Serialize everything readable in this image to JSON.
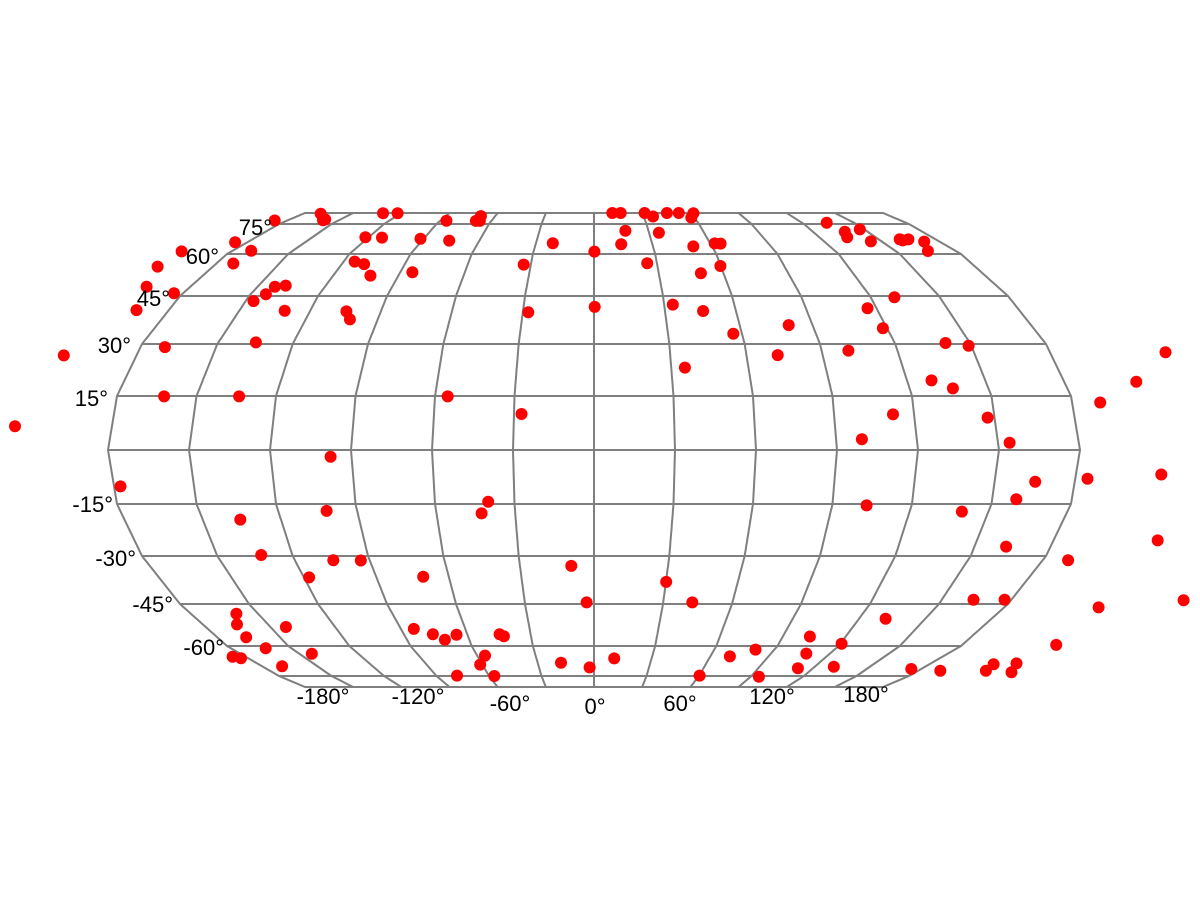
{
  "chart_data": {
    "type": "scatter",
    "projection": "pseudocylindrical world map (oval), central meridian 0°",
    "title": "",
    "xlabel": "",
    "ylabel": "",
    "grid": true,
    "graticule_color": "#7f7f7f",
    "marker_color": "#ff0000",
    "lat_ticks": [
      {
        "value": 75,
        "label": "75°"
      },
      {
        "value": 60,
        "label": "60°"
      },
      {
        "value": 45,
        "label": "45°"
      },
      {
        "value": 30,
        "label": "30°"
      },
      {
        "value": 15,
        "label": "15°"
      },
      {
        "value": -15,
        "label": "-15°"
      },
      {
        "value": -30,
        "label": "-30°"
      },
      {
        "value": -45,
        "label": "-45°"
      },
      {
        "value": -60,
        "label": "-60°"
      }
    ],
    "lon_ticks": [
      {
        "value": -180,
        "label": "-180°"
      },
      {
        "value": -120,
        "label": "-120°"
      },
      {
        "value": -60,
        "label": "-60°"
      },
      {
        "value": 0,
        "label": "0°"
      },
      {
        "value": 60,
        "label": "60°"
      },
      {
        "value": 120,
        "label": "120°"
      },
      {
        "value": 180,
        "label": "180°"
      }
    ],
    "points": [
      {
        "lon": -169.3,
        "lat": 79.7
      },
      {
        "lon": -131.2,
        "lat": 79.9
      },
      {
        "lon": -122.1,
        "lat": 79.9
      },
      {
        "lon": -68.7,
        "lat": 78.6
      },
      {
        "lon": 11.4,
        "lat": 80.2
      },
      {
        "lon": 16.6,
        "lat": 80.3
      },
      {
        "lon": 31.5,
        "lat": 80.0
      },
      {
        "lon": 45.4,
        "lat": 80.2
      },
      {
        "lon": 52.8,
        "lat": 80.2
      },
      {
        "lon": 61.8,
        "lat": 79.9
      },
      {
        "lon": -187.4,
        "lat": 76.6
      },
      {
        "lon": -159.1,
        "lat": 77.1
      },
      {
        "lon": -159.3,
        "lat": 76.7
      },
      {
        "lon": -86.5,
        "lat": 76.5
      },
      {
        "lon": -69.1,
        "lat": 76.4
      },
      {
        "lon": -66.8,
        "lat": 76.4
      },
      {
        "lon": 35.7,
        "lat": 78.4
      },
      {
        "lon": 58.4,
        "lat": 77.9
      },
      {
        "lon": 134.3,
        "lat": 75.6
      },
      {
        "lon": 17.3,
        "lat": 71.6
      },
      {
        "lon": 35.4,
        "lat": 70.6
      },
      {
        "lon": 137.4,
        "lat": 71.1
      },
      {
        "lon": 147.5,
        "lat": 72.3
      },
      {
        "lon": -121.8,
        "lat": 68.4
      },
      {
        "lon": -112.7,
        "lat": 68.2
      },
      {
        "lon": -91.7,
        "lat": 67.6
      },
      {
        "lon": -75.8,
        "lat": 66.7
      },
      {
        "lon": -21.3,
        "lat": 65.4
      },
      {
        "lon": 14.0,
        "lat": 64.9
      },
      {
        "lon": 50.5,
        "lat": 63.8
      },
      {
        "lon": 62.3,
        "lat": 65.3
      },
      {
        "lon": 65.3,
        "lat": 65.2
      },
      {
        "lon": 134.9,
        "lat": 68.4
      },
      {
        "lon": 144.4,
        "lat": 66.3
      },
      {
        "lon": 161.2,
        "lat": 67.4
      },
      {
        "lon": 161.8,
        "lat": 66.8
      },
      {
        "lon": 165.6,
        "lat": 67.3
      },
      {
        "lon": 172.0,
        "lat": 66.2
      },
      {
        "lon": -186.4,
        "lat": 65.9
      },
      {
        "lon": -204.8,
        "lat": 61.3
      },
      {
        "lon": -170.7,
        "lat": 61.6
      },
      {
        "lon": 0.2,
        "lat": 61.2
      },
      {
        "lon": 166.1,
        "lat": 61.5
      },
      {
        "lon": -114.7,
        "lat": 57.3
      },
      {
        "lon": -109.4,
        "lat": 56.4
      },
      {
        "lon": -102.9,
        "lat": 52.3
      },
      {
        "lon": -84.4,
        "lat": 53.5
      },
      {
        "lon": -33.4,
        "lat": 56.2
      },
      {
        "lon": 25.4,
        "lat": 56.7
      },
      {
        "lon": 49.5,
        "lat": 53.1
      },
      {
        "lon": 59.8,
        "lat": 55.7
      },
      {
        "lon": -206.1,
        "lat": 55.5
      },
      {
        "lon": -171.9,
        "lat": 56.6
      },
      {
        "lon": -199.5,
        "lat": 48.3
      },
      {
        "lon": -146.6,
        "lat": 43.4
      },
      {
        "lon": -137.9,
        "lat": 48.7
      },
      {
        "lon": -142.3,
        "lat": 48.3
      },
      {
        "lon": -101.6,
        "lat": 37.7
      },
      {
        "lon": -27.7,
        "lat": 39.9
      },
      {
        "lon": 33.7,
        "lat": 42.3
      },
      {
        "lon": 130.3,
        "lat": 44.6
      },
      {
        "lon": -193.7,
        "lat": 40.6
      },
      {
        "lon": -184.0,
        "lat": 46.0
      },
      {
        "lon": -143.3,
        "lat": 45.6
      },
      {
        "lon": -130.8,
        "lat": 40.4
      },
      {
        "lon": -104.6,
        "lat": 40.2
      },
      {
        "lon": 116.2,
        "lat": 41.2
      },
      {
        "lon": 0.3,
        "lat": 41.6
      },
      {
        "lon": 46.1,
        "lat": 40.3
      },
      {
        "lon": -135.0,
        "lat": 30.5
      },
      {
        "lon": 56.5,
        "lat": 33.2
      },
      {
        "lon": 140.2,
        "lat": 30.3
      },
      {
        "lon": 118.3,
        "lat": 34.9
      },
      {
        "lon": -170.3,
        "lat": 29.1
      },
      {
        "lon": 72.3,
        "lat": 26.8
      },
      {
        "lon": 100.6,
        "lat": 28.1
      },
      {
        "lon": 80.2,
        "lat": 35.9
      },
      {
        "lon": 148.9,
        "lat": 29.5
      },
      {
        "lon": -208.6,
        "lat": 26.7
      },
      {
        "lon": 225.6,
        "lat": 27.6
      },
      {
        "lon": -162.2,
        "lat": 14.9
      },
      {
        "lon": -133.9,
        "lat": 14.9
      },
      {
        "lon": -55.2,
        "lat": 14.9
      },
      {
        "lon": 35.3,
        "lat": 23.2
      },
      {
        "lon": 129.4,
        "lat": 19.5
      },
      {
        "lon": 136.5,
        "lat": 17.2
      },
      {
        "lon": 207.6,
        "lat": 19.1
      },
      {
        "lon": 246.8,
        "lat": 18.5
      },
      {
        "lon": 248.8,
        "lat": 17.9
      },
      {
        "lon": 190.6,
        "lat": 13.2
      },
      {
        "lon": -27.2,
        "lat": 10.0
      },
      {
        "lon": 112.1,
        "lat": 9.9
      },
      {
        "lon": 147.4,
        "lat": 9.0
      },
      {
        "lon": -216.2,
        "lat": 6.6
      },
      {
        "lon": 99.6,
        "lat": 3.0
      },
      {
        "lon": 154.3,
        "lat": 2.0
      },
      {
        "lon": 244.5,
        "lat": -0.4
      },
      {
        "lon": -97.8,
        "lat": -1.9
      },
      {
        "lon": -256.5,
        "lat": -2.8
      },
      {
        "lon": -255.7,
        "lat": -7.5
      },
      {
        "lon": -239.2,
        "lat": -14.5
      },
      {
        "lon": -235.2,
        "lat": -18.0
      },
      {
        "lon": -177.6,
        "lat": -10.1
      },
      {
        "lon": -39.9,
        "lat": -14.4
      },
      {
        "lon": 103.0,
        "lat": -15.4
      },
      {
        "lon": 165.2,
        "lat": -8.8
      },
      {
        "lon": 184.6,
        "lat": -8.0
      },
      {
        "lon": 211.9,
        "lat": -6.8
      },
      {
        "lon": 252.1,
        "lat": -13.4
      },
      {
        "lon": -101.6,
        "lat": -17.0
      },
      {
        "lon": -42.8,
        "lat": -17.7
      },
      {
        "lon": -135.6,
        "lat": -19.5
      },
      {
        "lon": 139.9,
        "lat": -17.2
      },
      {
        "lon": 159.1,
        "lat": -13.7
      },
      {
        "lon": 238.3,
        "lat": -21.0
      },
      {
        "lon": 220.8,
        "lat": -25.5
      },
      {
        "lon": -132.4,
        "lat": -29.7
      },
      {
        "lon": -104.6,
        "lat": -31.3
      },
      {
        "lon": -93.6,
        "lat": -31.4
      },
      {
        "lon": 162.5,
        "lat": -27.3
      },
      {
        "lon": 190.2,
        "lat": -31.3
      },
      {
        "lon": -117.9,
        "lat": -36.7
      },
      {
        "lon": -70.6,
        "lat": -36.5
      },
      {
        "lon": -9.2,
        "lat": -33.1
      },
      {
        "lon": 30.1,
        "lat": -38.1
      },
      {
        "lon": -3.2,
        "lat": -44.5
      },
      {
        "lon": 42.6,
        "lat": -44.5
      },
      {
        "lon": 163.7,
        "lat": -43.7
      },
      {
        "lon": 177.1,
        "lat": -43.7
      },
      {
        "lon": 254.5,
        "lat": -43.8
      },
      {
        "lon": 221.4,
        "lat": -46.2
      },
      {
        "lon": -159.7,
        "lat": -48.5
      },
      {
        "lon": -164.3,
        "lat": -52.3
      },
      {
        "lon": -142.8,
        "lat": -53.2
      },
      {
        "lon": 132.1,
        "lat": -50.3
      },
      {
        "lon": -84.0,
        "lat": -53.9
      },
      {
        "lon": -76.3,
        "lat": -55.8
      },
      {
        "lon": -65.2,
        "lat": -56.0
      },
      {
        "lon": -44.7,
        "lat": -55.8
      },
      {
        "lon": -42.9,
        "lat": -56.5
      },
      {
        "lon": 102.9,
        "lat": -56.6
      },
      {
        "lon": -166.2,
        "lat": -56.9
      },
      {
        "lon": -71.8,
        "lat": -57.8
      },
      {
        "lon": -162.7,
        "lat": -61.1
      },
      {
        "lon": 120.6,
        "lat": -59.2
      },
      {
        "lon": 225.9,
        "lat": -59.6
      },
      {
        "lon": 108.0,
        "lat": -63.8
      },
      {
        "lon": 80.6,
        "lat": -61.8
      },
      {
        "lon": -143.7,
        "lat": -63.9
      },
      {
        "lon": -183.7,
        "lat": -66.1
      },
      {
        "lon": 70.1,
        "lat": -65.2
      },
      {
        "lon": -56.0,
        "lat": -64.8
      },
      {
        "lon": -186.8,
        "lat": -65.4
      },
      {
        "lon": -61.2,
        "lat": -69.3
      },
      {
        "lon": -17.6,
        "lat": -68.4
      },
      {
        "lon": 10.5,
        "lat": -66.2
      },
      {
        "lon": 130.4,
        "lat": -70.4
      },
      {
        "lon": -169.1,
        "lat": -70.1
      },
      {
        "lon": 214.4,
        "lat": -69.1
      },
      {
        "lon": 225.8,
        "lat": -68.7
      },
      {
        "lon": -2.4,
        "lat": -70.7
      },
      {
        "lon": 174.6,
        "lat": -71.5
      },
      {
        "lon": 217.7,
        "lat": -72.4
      },
      {
        "lon": -78.1,
        "lat": -74.8
      },
      {
        "lon": -57.0,
        "lat": -75.0
      },
      {
        "lon": 60.2,
        "lat": -74.8
      },
      {
        "lon": 94.7,
        "lat": -75.3
      },
      {
        "lon": 233.7,
        "lat": -73.1
      },
      {
        "lon": 192.4,
        "lat": -72.4
      },
      {
        "lon": 111.7,
        "lat": -71.1
      }
    ]
  }
}
